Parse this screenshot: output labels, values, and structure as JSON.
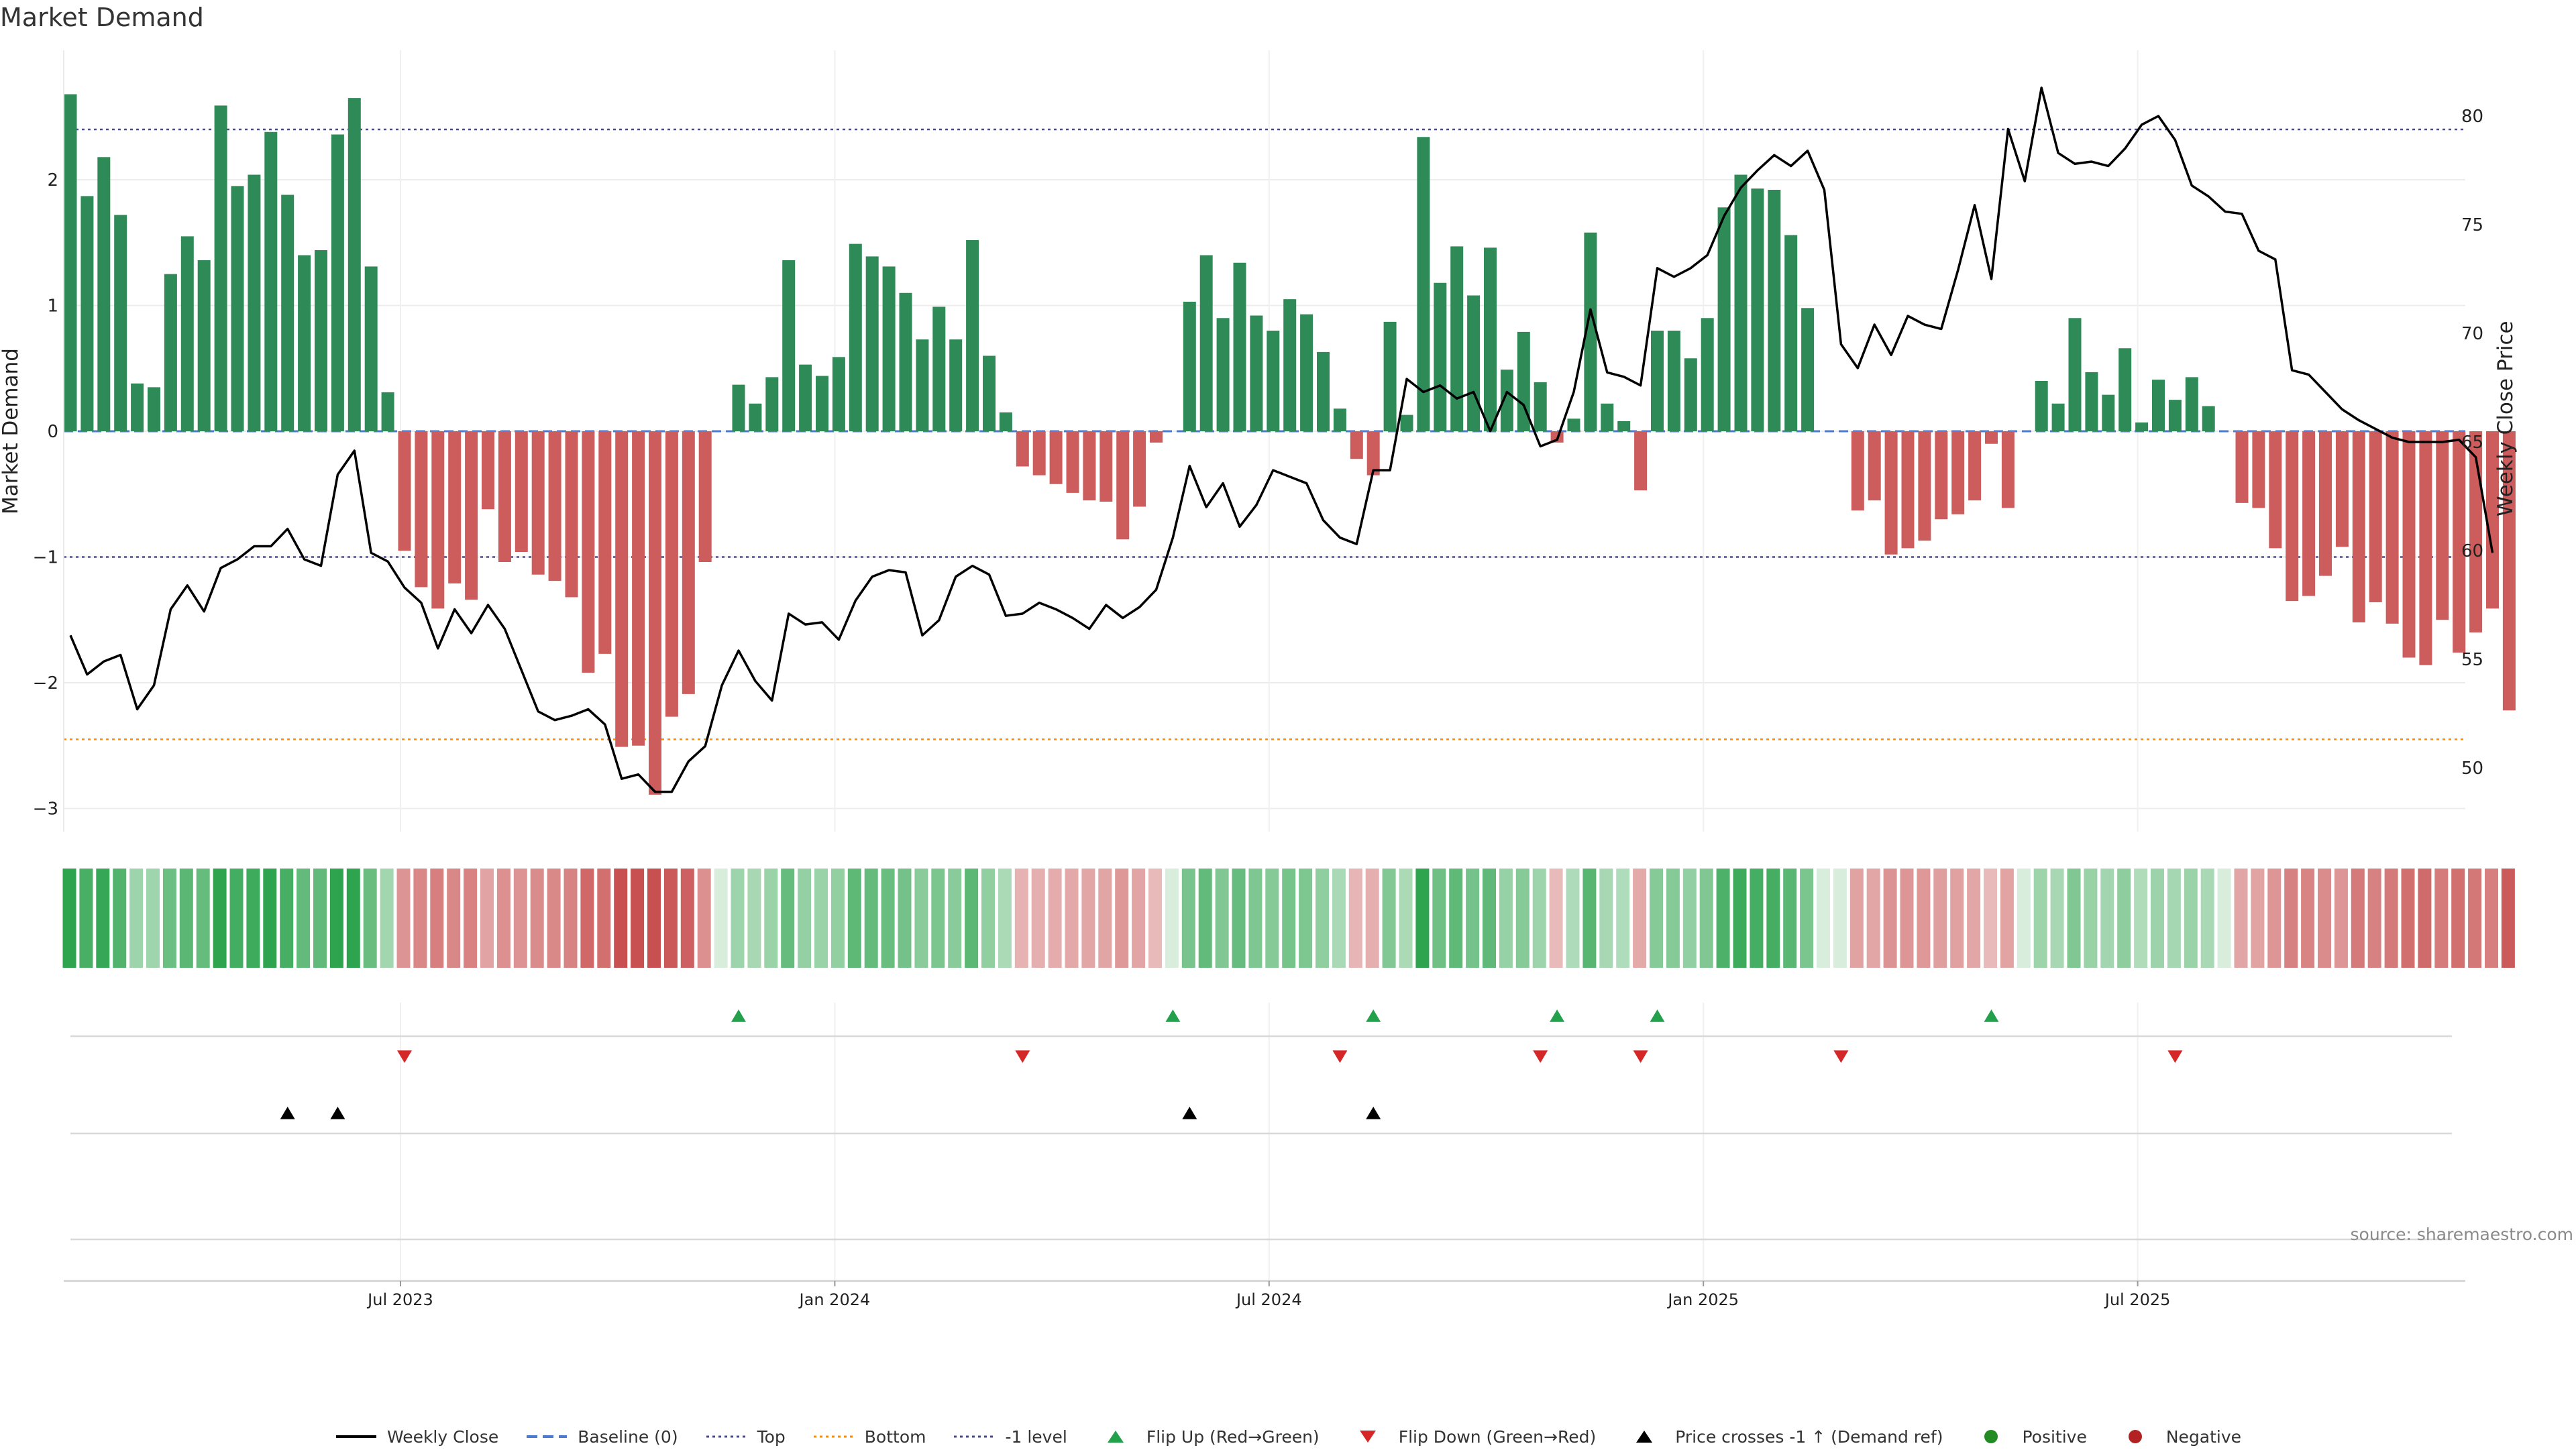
{
  "title": "Market Demand",
  "source_text": "source: sharemaestro.com",
  "colors": {
    "positive": "#2e8b57",
    "negative": "#cd5c5c",
    "price": "#000000",
    "top_line": "#4a4a8a",
    "bottom_line": "#ff8c00",
    "baseline": "#4a7bd0",
    "flip_up": "#22a04b",
    "flip_down": "#d62728",
    "cross": "#000000"
  },
  "legend": [
    {
      "label": "Weekly Close",
      "kind": "line-solid",
      "color": "#000000"
    },
    {
      "label": "Baseline (0)",
      "kind": "line-dash",
      "color": "#4a7bd0"
    },
    {
      "label": "Top",
      "kind": "line-dot",
      "color": "#4a4a8a"
    },
    {
      "label": "Bottom",
      "kind": "line-dot",
      "color": "#ff8c00"
    },
    {
      "label": "-1 level",
      "kind": "line-dot",
      "color": "#4a4a8a"
    },
    {
      "label": "Flip Up (Red→Green)",
      "kind": "tri-up",
      "color": "#22a04b"
    },
    {
      "label": "Flip Down (Green→Red)",
      "kind": "tri-down",
      "color": "#d62728"
    },
    {
      "label": "Price crosses -1 ↑ (Demand ref)",
      "kind": "tri-up",
      "color": "#000000"
    },
    {
      "label": "Positive",
      "kind": "dot",
      "color": "#228b22"
    },
    {
      "label": "Negative",
      "kind": "dot",
      "color": "#b22222"
    }
  ],
  "chart_data": {
    "type": "bar",
    "title": "Market Demand",
    "ylabel": "Market Demand",
    "y2label": "Weekly Close Price",
    "ylim": [
      -3.2,
      2.9
    ],
    "y_ticks": [
      2,
      1,
      0,
      -1,
      -2,
      -3
    ],
    "y_tick_labels": [
      "2",
      "1",
      "0",
      "−1",
      "−2",
      "−3"
    ],
    "y2lim": [
      47.9,
      83.2
    ],
    "y2_ticks": [
      80,
      75,
      70,
      65,
      60,
      55,
      50
    ],
    "y2_tick_labels": [
      "80",
      "75",
      "70",
      "65",
      "60",
      "55",
      "50"
    ],
    "top_level": 2.4,
    "bottom_level": -2.45,
    "minus_one_level": -1.0,
    "x_tick_labels": [
      "Jul 2023",
      "Jan 2024",
      "Jul 2024",
      "Jan 2025",
      "Jul 2025"
    ],
    "x_tick_index": [
      20,
      46,
      72,
      98,
      124
    ],
    "series": [
      {
        "name": "Market Demand",
        "values": [
          2.68,
          1.87,
          2.18,
          1.72,
          0.38,
          0.35,
          1.25,
          1.55,
          1.36,
          2.59,
          1.95,
          2.04,
          2.38,
          1.88,
          1.4,
          1.44,
          2.36,
          2.65,
          1.31,
          0.31,
          -0.95,
          -1.24,
          -1.41,
          -1.21,
          -1.34,
          -0.62,
          -1.04,
          -0.96,
          -1.14,
          -1.19,
          -1.32,
          -1.92,
          -1.77,
          -2.51,
          -2.5,
          -2.89,
          -2.27,
          -2.09,
          -1.04,
          0.0,
          0.37,
          0.22,
          0.43,
          1.36,
          0.53,
          0.44,
          0.59,
          1.49,
          1.39,
          1.31,
          1.1,
          0.73,
          0.99,
          0.73,
          1.52,
          0.6,
          0.15,
          -0.28,
          -0.35,
          -0.42,
          -0.49,
          -0.55,
          -0.56,
          -0.86,
          -0.6,
          -0.09,
          0.0,
          1.03,
          1.4,
          0.9,
          1.34,
          0.92,
          0.8,
          1.05,
          0.93,
          0.63,
          0.18,
          -0.22,
          -0.35,
          0.87,
          0.13,
          2.34,
          1.18,
          1.47,
          1.08,
          1.46,
          0.49,
          0.79,
          0.39,
          -0.09,
          0.1,
          1.58,
          0.22,
          0.08,
          -0.47,
          0.8,
          0.8,
          0.58,
          0.9,
          1.78,
          2.04,
          1.93,
          1.92,
          1.56,
          0.98,
          0.0,
          0.0,
          -0.63,
          -0.55,
          -0.98,
          -0.93,
          -0.87,
          -0.7,
          -0.66,
          -0.55,
          -0.1,
          -0.61,
          0.0,
          0.4,
          0.22,
          0.9,
          0.47,
          0.29,
          0.66,
          0.07,
          0.41,
          0.25,
          0.43,
          0.2,
          0.0,
          -0.57,
          -0.61,
          -0.93,
          -1.35,
          -1.31,
          -1.15,
          -0.92,
          -1.52,
          -1.36,
          -1.53,
          -1.8,
          -1.86,
          -1.5,
          -1.76,
          -1.6,
          -1.41,
          -2.22
        ]
      },
      {
        "name": "Weekly Close",
        "values": [
          56.1,
          54.3,
          54.9,
          55.2,
          52.7,
          53.8,
          57.3,
          58.4,
          57.2,
          59.2,
          59.6,
          60.2,
          60.2,
          61.0,
          59.6,
          59.3,
          63.5,
          64.6,
          59.9,
          59.5,
          58.3,
          57.6,
          55.5,
          57.3,
          56.2,
          57.5,
          56.4,
          54.5,
          52.6,
          52.2,
          52.4,
          52.7,
          52.0,
          49.5,
          49.7,
          48.9,
          48.9,
          50.3,
          51.0,
          53.8,
          55.4,
          54.0,
          53.1,
          57.1,
          56.6,
          56.7,
          55.9,
          57.7,
          58.8,
          59.1,
          59.0,
          56.1,
          56.8,
          58.8,
          59.3,
          58.9,
          57.0,
          57.1,
          57.6,
          57.3,
          56.9,
          56.4,
          57.5,
          56.9,
          57.4,
          58.2,
          60.6,
          63.9,
          62.0,
          63.1,
          61.1,
          62.1,
          63.7,
          63.4,
          63.1,
          61.4,
          60.6,
          60.3,
          63.7,
          63.7,
          67.9,
          67.3,
          67.6,
          67.0,
          67.3,
          65.5,
          67.3,
          66.7,
          64.8,
          65.1,
          67.3,
          71.1,
          68.2,
          68.0,
          67.6,
          73.0,
          72.6,
          73.0,
          73.6,
          75.4,
          76.7,
          77.5,
          78.2,
          77.7,
          78.4,
          76.6,
          69.5,
          68.4,
          70.4,
          69.0,
          70.8,
          70.4,
          70.2,
          72.9,
          75.9,
          72.5,
          79.4,
          77.0,
          81.3,
          78.3,
          77.8,
          77.9,
          77.7,
          78.5,
          79.6,
          80.0,
          78.9,
          76.8,
          76.3,
          75.6,
          75.5,
          73.8,
          73.4,
          68.3,
          68.1,
          67.3,
          66.5,
          66.0,
          65.6,
          65.2,
          65.0,
          65.0,
          65.0,
          65.1,
          64.3,
          59.9
        ]
      }
    ],
    "flip_up_index": [
      40,
      66,
      78,
      89,
      95,
      115
    ],
    "flip_down_index": [
      20,
      57,
      76,
      88,
      94,
      106,
      126
    ],
    "price_cross_index": [
      13,
      16,
      67,
      78
    ]
  }
}
